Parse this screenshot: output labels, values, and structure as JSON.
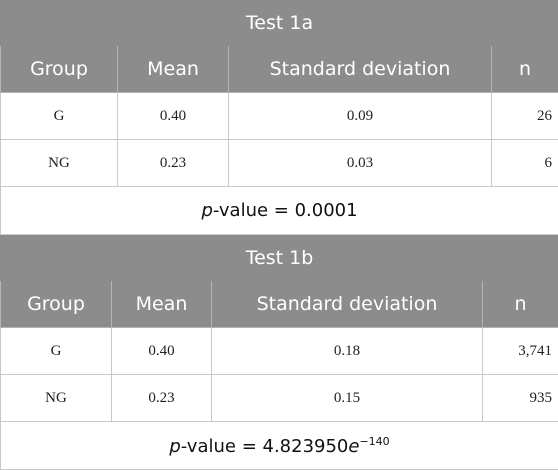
{
  "tests": [
    {
      "title": "Test 1a",
      "headers": [
        "Group",
        "Mean",
        "Standard deviation",
        "n"
      ],
      "rows": [
        {
          "group": "G",
          "mean": "0.40",
          "sd": "0.09",
          "n": "26"
        },
        {
          "group": "NG",
          "mean": "0.23",
          "sd": "0.03",
          "n": "6"
        }
      ],
      "pvalue_label": "p",
      "pvalue_text": "-value = 0.0001",
      "pvalue_exponent": ""
    },
    {
      "title": "Test 1b",
      "headers": [
        "Group",
        "Mean",
        "Standard deviation",
        "n"
      ],
      "rows": [
        {
          "group": "G",
          "mean": "0.40",
          "sd": "0.18",
          "n": "3,741"
        },
        {
          "group": "NG",
          "mean": "0.23",
          "sd": "0.15",
          "n": "935"
        }
      ],
      "pvalue_label": "p",
      "pvalue_text": "-value = 4.823950",
      "pvalue_e": "e",
      "pvalue_exponent": "−140"
    }
  ]
}
